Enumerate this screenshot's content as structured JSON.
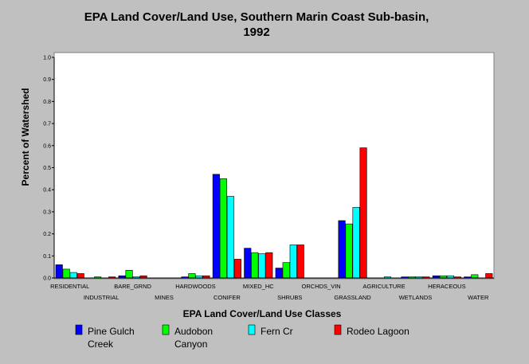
{
  "chart_data": {
    "type": "bar",
    "title": [
      "EPA Land Cover/Land Use, Southern Marin Coast Sub-basin,",
      "1992"
    ],
    "xlabel": "EPA Land Cover/Land Use Classes",
    "ylabel": "Percent of Watershed",
    "ylim": [
      0,
      1.0
    ],
    "yticks": [
      "0.0",
      "0.1",
      "0.2",
      "0.3",
      "0.4",
      "0.5",
      "0.6",
      "0.7",
      "0.8",
      "0.9",
      "1.0"
    ],
    "grid": false,
    "legend_position": "bottom",
    "categories": [
      "RESIDENTIAL",
      "INDUSTRIAL",
      "BARE_GRND",
      "MINES",
      "HARDWOODS",
      "CONIFER",
      "MIXED_HC",
      "SHRUBS",
      "ORCHDS_VIN",
      "GRASSLAND",
      "AGRICULTURE",
      "WETLANDS",
      "HERACEOUS",
      "WATER"
    ],
    "series": [
      {
        "name": "Pine Gulch Creek",
        "name_lines": [
          "Pine Gulch",
          "Creek"
        ],
        "color": "#0000ff",
        "values": [
          0.06,
          0.0,
          0.01,
          0.0,
          0.005,
          0.47,
          0.135,
          0.045,
          0.0,
          0.26,
          0.0,
          0.005,
          0.01,
          0.005
        ]
      },
      {
        "name": "Audobon Canyon",
        "name_lines": [
          "Audobon",
          "Canyon"
        ],
        "color": "#00ff00",
        "values": [
          0.04,
          0.005,
          0.035,
          0.0,
          0.02,
          0.45,
          0.115,
          0.07,
          0.0,
          0.245,
          0.0,
          0.005,
          0.01,
          0.015
        ]
      },
      {
        "name": "Fern Cr",
        "name_lines": [
          "Fern Cr"
        ],
        "color": "#00ffff",
        "values": [
          0.025,
          0.0,
          0.005,
          0.0,
          0.01,
          0.37,
          0.11,
          0.15,
          0.0,
          0.32,
          0.005,
          0.005,
          0.01,
          0.0
        ]
      },
      {
        "name": "Rodeo Lagoon",
        "name_lines": [
          "Rodeo Lagoon"
        ],
        "color": "#ff0000",
        "values": [
          0.02,
          0.005,
          0.01,
          0.0,
          0.01,
          0.085,
          0.115,
          0.15,
          0.0,
          0.59,
          0.0,
          0.005,
          0.005,
          0.02
        ]
      }
    ]
  }
}
